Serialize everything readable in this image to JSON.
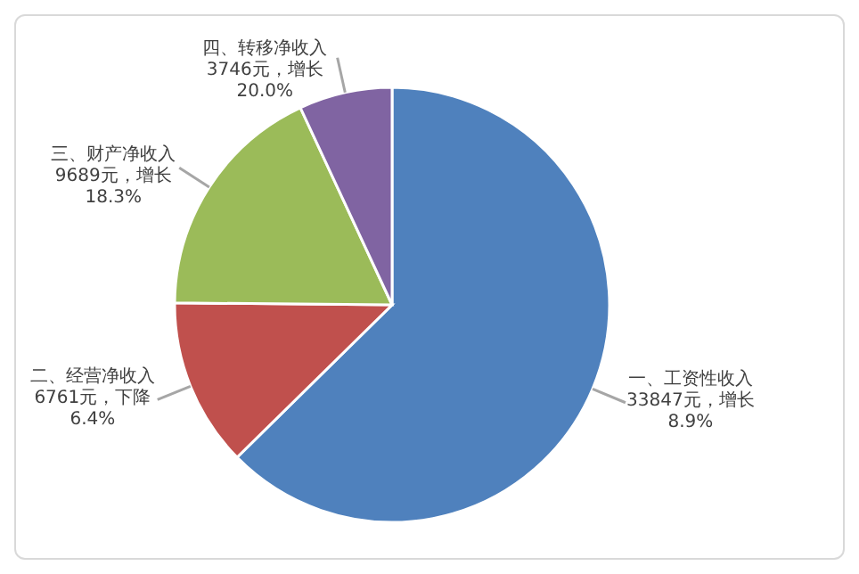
{
  "chart_data": {
    "type": "pie",
    "categories": [
      "一、工资性收入",
      "二、经营净收入",
      "三、财产净收入",
      "四、转移净收入"
    ],
    "values": [
      33847,
      6761,
      9689,
      3746
    ],
    "colors": [
      "#4f81bd",
      "#c0504d",
      "#9bbb59",
      "#8064a2"
    ],
    "value_labels": [
      "33847元，增长 8.9%",
      "6761元，下降 6.4%",
      "9689元，增长 18.3%",
      "3746元，增长 20.0%"
    ]
  }
}
